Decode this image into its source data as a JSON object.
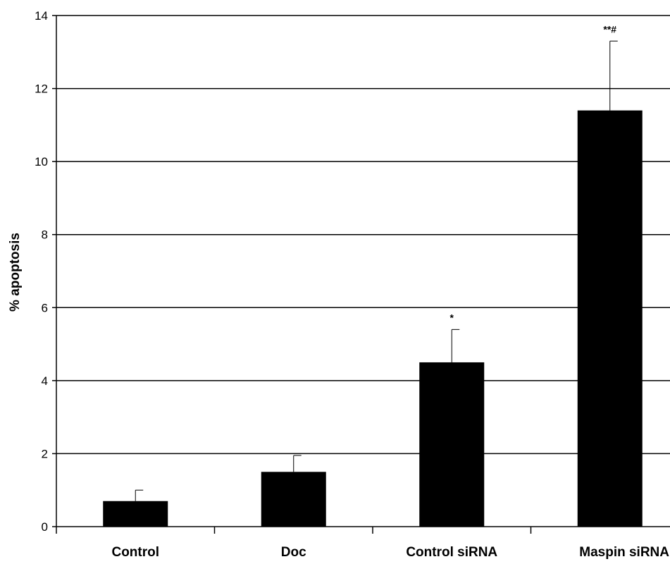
{
  "chart_data": {
    "type": "bar",
    "categories": [
      "Control",
      "Doc",
      "Control siRNA",
      "Maspin siRNA"
    ],
    "values": [
      0.7,
      1.5,
      4.5,
      11.4
    ],
    "error_bars": [
      0.3,
      0.45,
      0.9,
      1.9
    ],
    "annotations": [
      "",
      "",
      "*",
      "**#"
    ],
    "xlabel": "",
    "ylabel": "% apoptosis",
    "ylim": [
      0,
      14
    ],
    "yticks": [
      0,
      2,
      4,
      6,
      8,
      10,
      12,
      14
    ],
    "grid": true,
    "bar_color": "#000000"
  }
}
